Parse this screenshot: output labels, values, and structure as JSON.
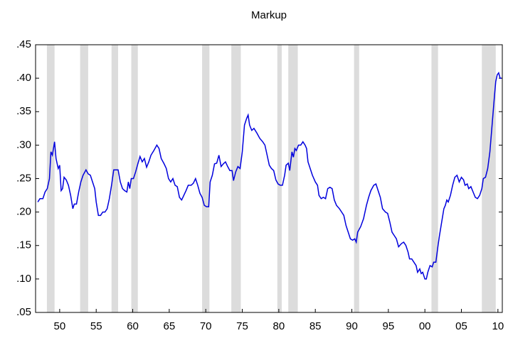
{
  "chart_data": {
    "type": "line",
    "title": "Markup",
    "xlim": [
      1946.7,
      2010.6
    ],
    "ylim": [
      0.05,
      0.45
    ],
    "xticks": [
      {
        "value": 1950,
        "label": "50"
      },
      {
        "value": 1955,
        "label": "55"
      },
      {
        "value": 1960,
        "label": "60"
      },
      {
        "value": 1965,
        "label": "65"
      },
      {
        "value": 1970,
        "label": "70"
      },
      {
        "value": 1975,
        "label": "75"
      },
      {
        "value": 1980,
        "label": "80"
      },
      {
        "value": 1985,
        "label": "85"
      },
      {
        "value": 1990,
        "label": "90"
      },
      {
        "value": 1995,
        "label": "95"
      },
      {
        "value": 2000,
        "label": "00"
      },
      {
        "value": 2005,
        "label": "05"
      },
      {
        "value": 2010,
        "label": "10"
      }
    ],
    "yticks": [
      {
        "value": 0.05,
        "label": ".05"
      },
      {
        "value": 0.1,
        "label": ".10"
      },
      {
        "value": 0.15,
        "label": ".15"
      },
      {
        "value": 0.2,
        "label": ".20"
      },
      {
        "value": 0.25,
        "label": ".25"
      },
      {
        "value": 0.3,
        "label": ".30"
      },
      {
        "value": 0.35,
        "label": ".35"
      },
      {
        "value": 0.4,
        "label": ".40"
      },
      {
        "value": 0.45,
        "label": ".45"
      }
    ],
    "shaded_periods": [
      [
        1948.25,
        1949.3
      ],
      [
        1952.8,
        1953.9
      ],
      [
        1957.1,
        1958.0
      ],
      [
        1959.8,
        1960.7
      ],
      [
        1969.5,
        1970.5
      ],
      [
        1973.5,
        1974.8
      ],
      [
        1979.8,
        1980.4
      ],
      [
        1981.3,
        1982.6
      ],
      [
        1990.3,
        1991.0
      ],
      [
        2000.9,
        2001.8
      ],
      [
        2007.8,
        2009.7
      ]
    ],
    "shade_color": "#dcdcdc",
    "x": [
      1947.0,
      1947.3,
      1947.7,
      1948.0,
      1948.3,
      1948.6,
      1948.8,
      1949.0,
      1949.3,
      1949.5,
      1949.8,
      1950.0,
      1950.2,
      1950.4,
      1950.6,
      1950.9,
      1951.2,
      1951.5,
      1951.8,
      1952.0,
      1952.3,
      1952.6,
      1952.9,
      1953.2,
      1953.6,
      1953.9,
      1954.2,
      1954.5,
      1954.8,
      1955.0,
      1955.3,
      1955.6,
      1955.9,
      1956.2,
      1956.5,
      1956.8,
      1957.1,
      1957.4,
      1957.8,
      1958.0,
      1958.3,
      1958.6,
      1958.9,
      1959.2,
      1959.4,
      1959.6,
      1959.8,
      1960.1,
      1960.4,
      1960.7,
      1961.0,
      1961.3,
      1961.6,
      1961.9,
      1962.2,
      1962.5,
      1962.9,
      1963.3,
      1963.6,
      1963.9,
      1964.3,
      1964.6,
      1964.9,
      1965.2,
      1965.5,
      1965.8,
      1966.1,
      1966.4,
      1966.7,
      1967.0,
      1967.3,
      1967.6,
      1968.0,
      1968.3,
      1968.6,
      1968.9,
      1969.2,
      1969.5,
      1969.8,
      1970.1,
      1970.4,
      1970.6,
      1970.9,
      1971.2,
      1971.5,
      1971.8,
      1972.1,
      1972.4,
      1972.7,
      1973.0,
      1973.3,
      1973.6,
      1973.8,
      1974.1,
      1974.4,
      1974.7,
      1975.0,
      1975.3,
      1975.6,
      1975.8,
      1976.0,
      1976.3,
      1976.6,
      1977.0,
      1977.4,
      1977.8,
      1978.1,
      1978.4,
      1978.7,
      1979.0,
      1979.3,
      1979.6,
      1979.9,
      1980.2,
      1980.5,
      1980.8,
      1981.0,
      1981.3,
      1981.5,
      1981.8,
      1982.0,
      1982.2,
      1982.4,
      1982.7,
      1983.0,
      1983.3,
      1983.6,
      1983.8,
      1984.0,
      1984.3,
      1984.6,
      1985.0,
      1985.3,
      1985.5,
      1985.8,
      1986.1,
      1986.4,
      1986.7,
      1987.0,
      1987.3,
      1987.6,
      1987.9,
      1988.3,
      1988.6,
      1988.9,
      1989.2,
      1989.5,
      1989.8,
      1990.1,
      1990.4,
      1990.6,
      1990.8,
      1991.2,
      1991.6,
      1992.0,
      1992.3,
      1992.6,
      1993.0,
      1993.3,
      1993.6,
      1993.9,
      1994.2,
      1994.6,
      1994.9,
      1995.2,
      1995.5,
      1995.8,
      1996.1,
      1996.4,
      1996.8,
      1997.1,
      1997.4,
      1997.7,
      1997.9,
      1998.2,
      1998.5,
      1998.8,
      1999.0,
      1999.3,
      1999.5,
      1999.7,
      2000.0,
      2000.2,
      2000.4,
      2000.7,
      2001.0,
      2001.2,
      2001.5,
      2001.8,
      2002.0,
      2002.3,
      2002.6,
      2002.8,
      2003.0,
      2003.2,
      2003.5,
      2003.8,
      2004.1,
      2004.4,
      2004.7,
      2005.0,
      2005.3,
      2005.5,
      2005.8,
      2006.0,
      2006.3,
      2006.6,
      2006.9,
      2007.2,
      2007.5,
      2007.8,
      2008.0,
      2008.3,
      2008.6,
      2008.9,
      2009.2,
      2009.5,
      2009.7,
      2009.9,
      2010.1,
      2010.3,
      2010.5
    ],
    "series": [
      {
        "color": "#0000dd",
        "values": [
          0.215,
          0.22,
          0.22,
          0.23,
          0.235,
          0.25,
          0.29,
          0.285,
          0.305,
          0.28,
          0.265,
          0.27,
          0.232,
          0.235,
          0.252,
          0.248,
          0.24,
          0.225,
          0.205,
          0.212,
          0.212,
          0.23,
          0.245,
          0.255,
          0.263,
          0.257,
          0.255,
          0.245,
          0.235,
          0.215,
          0.195,
          0.195,
          0.2,
          0.2,
          0.205,
          0.22,
          0.24,
          0.263,
          0.263,
          0.263,
          0.245,
          0.235,
          0.232,
          0.23,
          0.245,
          0.235,
          0.25,
          0.25,
          0.26,
          0.272,
          0.283,
          0.275,
          0.28,
          0.267,
          0.275,
          0.285,
          0.292,
          0.3,
          0.295,
          0.28,
          0.272,
          0.265,
          0.25,
          0.245,
          0.25,
          0.24,
          0.238,
          0.222,
          0.218,
          0.225,
          0.232,
          0.24,
          0.24,
          0.243,
          0.25,
          0.24,
          0.228,
          0.222,
          0.21,
          0.208,
          0.208,
          0.245,
          0.255,
          0.272,
          0.273,
          0.285,
          0.268,
          0.272,
          0.275,
          0.268,
          0.262,
          0.262,
          0.247,
          0.26,
          0.268,
          0.265,
          0.29,
          0.33,
          0.34,
          0.345,
          0.33,
          0.322,
          0.325,
          0.318,
          0.31,
          0.305,
          0.3,
          0.285,
          0.27,
          0.265,
          0.262,
          0.248,
          0.242,
          0.24,
          0.24,
          0.255,
          0.27,
          0.273,
          0.262,
          0.29,
          0.282,
          0.295,
          0.292,
          0.3,
          0.3,
          0.305,
          0.3,
          0.295,
          0.275,
          0.265,
          0.255,
          0.245,
          0.24,
          0.225,
          0.22,
          0.222,
          0.22,
          0.235,
          0.237,
          0.235,
          0.218,
          0.21,
          0.205,
          0.2,
          0.195,
          0.18,
          0.17,
          0.16,
          0.158,
          0.16,
          0.155,
          0.17,
          0.178,
          0.19,
          0.21,
          0.222,
          0.232,
          0.24,
          0.242,
          0.232,
          0.222,
          0.205,
          0.2,
          0.198,
          0.185,
          0.17,
          0.165,
          0.16,
          0.148,
          0.153,
          0.155,
          0.15,
          0.14,
          0.13,
          0.13,
          0.125,
          0.12,
          0.11,
          0.115,
          0.108,
          0.11,
          0.1,
          0.1,
          0.11,
          0.12,
          0.118,
          0.125,
          0.125,
          0.15,
          0.165,
          0.185,
          0.205,
          0.21,
          0.218,
          0.215,
          0.225,
          0.24,
          0.252,
          0.255,
          0.245,
          0.252,
          0.248,
          0.24,
          0.242,
          0.235,
          0.238,
          0.23,
          0.222,
          0.22,
          0.225,
          0.235,
          0.25,
          0.252,
          0.265,
          0.29,
          0.33,
          0.37,
          0.395,
          0.405,
          0.408,
          0.4,
          0.4
        ]
      }
    ]
  }
}
